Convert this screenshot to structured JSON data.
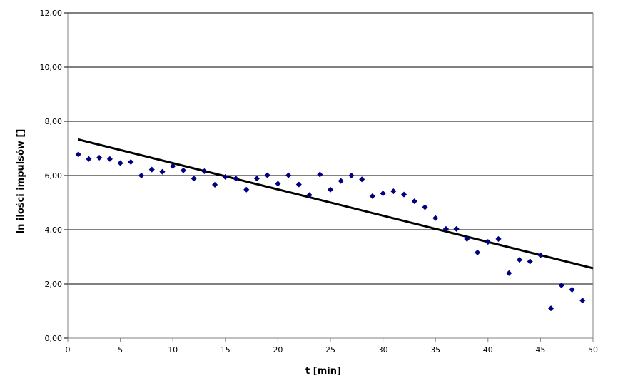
{
  "chart_data": {
    "type": "scatter",
    "xlabel": "t [min]",
    "ylabel": "ln ilości impulsów []",
    "xlim": [
      0,
      50
    ],
    "ylim": [
      0,
      12
    ],
    "x_ticks": [
      "0",
      "5",
      "10",
      "15",
      "20",
      "25",
      "30",
      "35",
      "40",
      "45",
      "50"
    ],
    "y_ticks": [
      "0,00",
      "2,00",
      "4,00",
      "6,00",
      "8,00",
      "10,00",
      "12,00"
    ],
    "grid": "horizontal",
    "legend": "none",
    "marker_color": "#000080",
    "trendline_color": "#000000",
    "series": [
      {
        "x": [
          1,
          2,
          3,
          4,
          5,
          6,
          7,
          8,
          9,
          10,
          11,
          12,
          13,
          14,
          15,
          16,
          17,
          18,
          19,
          20,
          21,
          22,
          23,
          24,
          25,
          26,
          27,
          28,
          29,
          30,
          31,
          32,
          33,
          34,
          35,
          36,
          37,
          38,
          39,
          40,
          41,
          42,
          43,
          44,
          45,
          46,
          47,
          48,
          49
        ],
        "y": [
          6.78,
          6.61,
          6.66,
          6.61,
          6.46,
          6.5,
          6.0,
          6.22,
          6.14,
          6.35,
          6.19,
          5.89,
          6.16,
          5.66,
          5.95,
          5.89,
          5.48,
          5.89,
          6.01,
          5.7,
          6.01,
          5.67,
          5.28,
          6.04,
          5.48,
          5.8,
          6.0,
          5.86,
          5.24,
          5.34,
          5.42,
          5.3,
          5.05,
          4.83,
          4.43,
          4.03,
          4.03,
          3.66,
          3.16,
          3.55,
          3.66,
          2.4,
          2.89,
          2.83,
          3.06,
          1.1,
          1.95,
          1.79,
          1.39
        ]
      }
    ],
    "trendline": {
      "x": [
        1,
        50
      ],
      "y": [
        7.33,
        2.58
      ]
    }
  }
}
